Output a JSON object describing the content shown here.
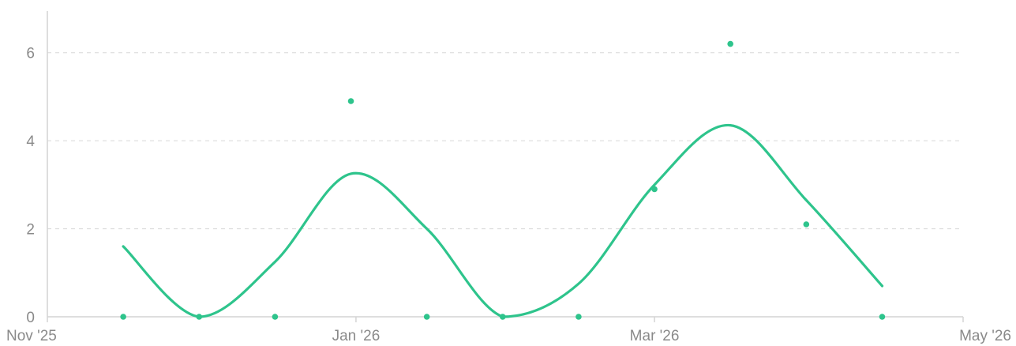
{
  "chart_data": {
    "type": "scatter",
    "title": "",
    "xlabel": "",
    "ylabel": "",
    "x_ticks": [
      "Nov '25",
      "Jan '26",
      "Mar '26",
      "May '26"
    ],
    "y_ticks": [
      "0",
      "2",
      "4",
      "6"
    ],
    "xlim": [
      "2025-11-01",
      "2026-05-01"
    ],
    "ylim": [
      0,
      7
    ],
    "grid": true,
    "legend": "none",
    "colors": {
      "series": "#2ec48c",
      "grid": "#d8d8d8",
      "axis": "#d4d4d4",
      "label": "#8a8a8a"
    },
    "series": [
      {
        "type": "scatter",
        "points": [
          {
            "x": "2025-11-16",
            "y": 0
          },
          {
            "x": "2025-12-01",
            "y": 0
          },
          {
            "x": "2025-12-16",
            "y": 0
          },
          {
            "x": "2025-12-31",
            "y": 4.9
          },
          {
            "x": "2026-01-15",
            "y": 0
          },
          {
            "x": "2026-01-30",
            "y": 0
          },
          {
            "x": "2026-02-14",
            "y": 0
          },
          {
            "x": "2026-03-01",
            "y": 2.9
          },
          {
            "x": "2026-03-16",
            "y": 6.2
          },
          {
            "x": "2026-03-31",
            "y": 2.1
          },
          {
            "x": "2026-04-15",
            "y": 0
          }
        ]
      },
      {
        "type": "line",
        "smooth": true,
        "points": [
          {
            "x": "2025-11-16",
            "y": 1.6
          },
          {
            "x": "2025-12-01",
            "y": 0
          },
          {
            "x": "2025-12-16",
            "y": 1.25
          },
          {
            "x": "2025-12-31",
            "y": 3.25
          },
          {
            "x": "2026-01-15",
            "y": 2.0
          },
          {
            "x": "2026-01-30",
            "y": 0
          },
          {
            "x": "2026-02-14",
            "y": 0.75
          },
          {
            "x": "2026-03-01",
            "y": 3.0
          },
          {
            "x": "2026-03-16",
            "y": 4.35
          },
          {
            "x": "2026-03-31",
            "y": 2.65
          },
          {
            "x": "2026-04-15",
            "y": 0.7
          }
        ]
      }
    ]
  }
}
